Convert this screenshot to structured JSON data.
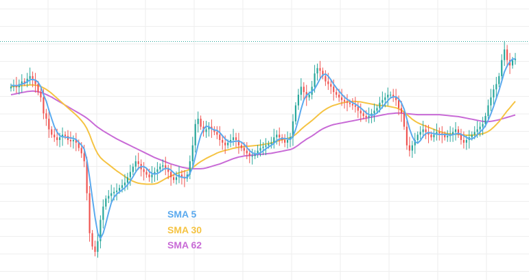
{
  "chart_data": {
    "type": "candlestick",
    "title": "",
    "xlabel": "",
    "ylabel": "",
    "grid": true,
    "legend_position": "bottom-left",
    "colors": {
      "up": "#26a69a",
      "down": "#ef5350",
      "sma5": "#5aa9ee",
      "sma30": "#f5c342",
      "sma62": "#c86ad6",
      "reference_line": "#26a69a",
      "grid": "#eeeeee"
    },
    "ylim": [
      0,
      100
    ],
    "reference_level": 87,
    "close": [
      70,
      70.5,
      69.8,
      71,
      72,
      71.5,
      73,
      74,
      72.5,
      71,
      68,
      66,
      60,
      58,
      54,
      52,
      51,
      50,
      51,
      52,
      51.5,
      50,
      49.5,
      50,
      49,
      47,
      45,
      42,
      30,
      15,
      10,
      8,
      12,
      20,
      25,
      28,
      29,
      30,
      30.5,
      31,
      32,
      33,
      34,
      36,
      38,
      40,
      42,
      41,
      39,
      38,
      37,
      36,
      37,
      38,
      39,
      40,
      40.5,
      39,
      38,
      36,
      35,
      36,
      37,
      36,
      35.5,
      37,
      42,
      48,
      56,
      58,
      55,
      53,
      54,
      55,
      54,
      53,
      52,
      50,
      49,
      48,
      49,
      50,
      51,
      50,
      48,
      47,
      46,
      45,
      44,
      44,
      45,
      46,
      47,
      47.5,
      48,
      48.5,
      49,
      51,
      52,
      51,
      50,
      49,
      50,
      51,
      57,
      63,
      67,
      70,
      68,
      66,
      67,
      70,
      75,
      77,
      76,
      74,
      72,
      71,
      70,
      68,
      67,
      66,
      65,
      64.5,
      64,
      63.5,
      63,
      62.5,
      61,
      60,
      59,
      58.5,
      59,
      60,
      61,
      62,
      64,
      65,
      66,
      67,
      67,
      66,
      65,
      62,
      60,
      55,
      48,
      46,
      48,
      50,
      52,
      53,
      54,
      53,
      52,
      51,
      52,
      53,
      52.5,
      52,
      51,
      51.5,
      52,
      53,
      54,
      52,
      50,
      49,
      50,
      51,
      52,
      53,
      54,
      55,
      56,
      59,
      63,
      66,
      69,
      71,
      74,
      80,
      84,
      80,
      78,
      80,
      80.5
    ],
    "sma5": [
      70.5,
      70.5,
      70.4,
      70.6,
      71.0,
      71.3,
      71.9,
      72.6,
      72.7,
      72.5,
      71.7,
      70.0,
      67.0,
      64.6,
      61.2,
      58.0,
      55.0,
      53.0,
      51.6,
      51.2,
      51.1,
      50.9,
      50.8,
      50.6,
      50.2,
      49.1,
      48.1,
      46.6,
      42.6,
      35.8,
      28.4,
      21.0,
      15.0,
      13.0,
      15.0,
      18.6,
      22.8,
      26.4,
      28.5,
      29.7,
      30.5,
      31.3,
      32.1,
      33.2,
      34.6,
      36.2,
      38.0,
      39.4,
      40.0,
      40.0,
      39.4,
      38.2,
      37.4,
      37.2,
      37.4,
      38.0,
      38.9,
      39.3,
      39.3,
      38.7,
      37.7,
      36.8,
      36.4,
      36.0,
      35.9,
      35.9,
      37.5,
      39.7,
      43.7,
      48.2,
      51.8,
      54.0,
      55.2,
      55.0,
      54.2,
      53.8,
      53.6,
      52.8,
      51.6,
      50.4,
      49.6,
      49.2,
      49.4,
      49.6,
      49.6,
      49.2,
      48.4,
      47.2,
      46.0,
      45.2,
      44.8,
      44.8,
      45.2,
      45.9,
      46.7,
      47.4,
      48.0,
      48.8,
      49.8,
      50.3,
      50.6,
      50.6,
      50.4,
      50.2,
      51.4,
      54.0,
      57.6,
      61.6,
      65.0,
      66.8,
      67.6,
      68.2,
      69.2,
      71.0,
      73.0,
      74.4,
      74.8,
      74.0,
      72.6,
      71.0,
      69.6,
      68.4,
      67.2,
      66.1,
      65.3,
      64.6,
      64.0,
      63.5,
      62.8,
      62.0,
      61.1,
      60.2,
      59.5,
      59.3,
      59.5,
      60.1,
      61.2,
      62.4,
      63.6,
      64.8,
      65.8,
      66.2,
      66.2,
      65.4,
      64.0,
      61.6,
      58.0,
      54.2,
      51.4,
      49.4,
      48.8,
      49.8,
      51.4,
      52.4,
      52.8,
      52.6,
      52.4,
      52.2,
      52.1,
      52.1,
      52.1,
      52.0,
      51.8,
      52.0,
      52.3,
      52.5,
      52.2,
      51.6,
      51.0,
      50.4,
      50.4,
      51.0,
      52.0,
      53.0,
      54.0,
      55.4,
      57.4,
      59.8,
      62.6,
      65.6,
      68.6,
      72.0,
      75.6,
      77.8,
      79.4,
      80.4,
      80.5
    ],
    "sma30": [
      70.0,
      70.1,
      70.2,
      70.3,
      70.4,
      70.5,
      70.6,
      70.7,
      70.7,
      70.6,
      70.4,
      70.1,
      69.6,
      69.0,
      68.3,
      67.5,
      66.6,
      65.7,
      64.8,
      63.9,
      63.0,
      62.1,
      61.2,
      60.3,
      59.4,
      58.4,
      57.3,
      56.0,
      54.3,
      52.0,
      49.3,
      46.8,
      44.8,
      43.4,
      42.4,
      41.6,
      40.8,
      40.0,
      39.2,
      38.4,
      37.7,
      37.0,
      36.3,
      35.6,
      35.0,
      34.5,
      34.1,
      33.8,
      33.6,
      33.5,
      33.4,
      33.4,
      33.4,
      33.5,
      33.8,
      34.3,
      34.9,
      35.5,
      36.0,
      36.5,
      36.9,
      37.3,
      37.7,
      38.0,
      38.3,
      38.6,
      39.0,
      39.6,
      40.4,
      41.2,
      41.9,
      42.5,
      43.1,
      43.6,
      44.1,
      44.6,
      45.1,
      45.5,
      45.8,
      46.1,
      46.3,
      46.6,
      46.9,
      47.1,
      47.3,
      47.4,
      47.5,
      47.6,
      47.7,
      47.8,
      47.9,
      48.0,
      48.1,
      48.3,
      48.5,
      48.7,
      48.9,
      49.2,
      49.5,
      49.8,
      50.1,
      50.3,
      50.6,
      50.9,
      51.4,
      52.1,
      53.0,
      54.0,
      54.9,
      55.7,
      56.5,
      57.3,
      58.2,
      59.1,
      60.0,
      60.8,
      61.5,
      62.1,
      62.6,
      63.0,
      63.3,
      63.6,
      63.9,
      64.1,
      64.3,
      64.4,
      64.5,
      64.5,
      64.4,
      64.3,
      64.1,
      63.9,
      63.7,
      63.5,
      63.3,
      63.1,
      63.0,
      62.9,
      62.8,
      62.7,
      62.5,
      62.3,
      62.1,
      61.7,
      61.2,
      60.5,
      59.6,
      58.7,
      57.8,
      57.1,
      56.5,
      56.0,
      55.6,
      55.2,
      54.8,
      54.4,
      54.0,
      53.6,
      53.2,
      52.9,
      52.6,
      52.4,
      52.3,
      52.2,
      52.2,
      52.1,
      52.0,
      51.9,
      51.8,
      51.8,
      51.8,
      51.9,
      52.0,
      52.2,
      52.4,
      52.7,
      53.2,
      53.9,
      54.8,
      55.8,
      56.9,
      58.2,
      59.6,
      60.9,
      62.1,
      63.3,
      64.5
    ],
    "sma62": [
      67.0,
      67.2,
      67.4,
      67.6,
      67.8,
      68.0,
      68.2,
      68.3,
      68.4,
      68.3,
      68.1,
      67.9,
      67.5,
      67.1,
      66.6,
      66.1,
      65.5,
      64.9,
      64.3,
      63.7,
      63.1,
      62.5,
      61.9,
      61.3,
      60.7,
      60.1,
      59.5,
      58.9,
      58.2,
      57.4,
      56.5,
      55.6,
      54.8,
      54.1,
      53.4,
      52.8,
      52.2,
      51.6,
      51.0,
      50.4,
      49.9,
      49.4,
      48.9,
      48.4,
      47.9,
      47.4,
      46.9,
      46.4,
      45.9,
      45.4,
      44.9,
      44.4,
      43.9,
      43.4,
      43.0,
      42.6,
      42.2,
      41.8,
      41.4,
      41.0,
      40.7,
      40.4,
      40.1,
      39.8,
      39.6,
      39.4,
      39.3,
      39.2,
      39.2,
      39.2,
      39.2,
      39.3,
      39.5,
      39.8,
      40.1,
      40.4,
      40.7,
      41.0,
      41.4,
      41.8,
      42.2,
      42.6,
      43.0,
      43.3,
      43.6,
      43.8,
      44.0,
      44.1,
      44.2,
      44.3,
      44.4,
      44.5,
      44.6,
      44.7,
      44.8,
      44.9,
      45.0,
      45.2,
      45.4,
      45.6,
      45.8,
      46.0,
      46.2,
      46.4,
      46.8,
      47.4,
      48.1,
      48.9,
      49.6,
      50.3,
      50.9,
      51.5,
      52.2,
      52.9,
      53.6,
      54.2,
      54.7,
      55.1,
      55.5,
      55.8,
      56.0,
      56.2,
      56.4,
      56.6,
      56.8,
      57.0,
      57.2,
      57.4,
      57.6,
      57.8,
      58.0,
      58.2,
      58.4,
      58.6,
      58.8,
      59.0,
      59.2,
      59.4,
      59.6,
      59.8,
      59.9,
      60.0,
      60.1,
      60.1,
      60.1,
      60.0,
      59.9,
      59.8,
      59.7,
      59.6,
      59.5,
      59.5,
      59.5,
      59.5,
      59.5,
      59.5,
      59.5,
      59.5,
      59.5,
      59.4,
      59.3,
      59.2,
      59.1,
      59.0,
      58.9,
      58.8,
      58.6,
      58.4,
      58.2,
      58.0,
      57.8,
      57.6,
      57.4,
      57.2,
      57.0,
      56.9,
      56.9,
      57.0,
      57.2,
      57.4,
      57.6,
      57.9,
      58.2,
      58.5,
      58.8,
      59.1,
      59.4
    ],
    "legend": [
      {
        "label": "SMA 5",
        "color": "#5aa9ee"
      },
      {
        "label": "SMA 30",
        "color": "#f5c342"
      },
      {
        "label": "SMA 62",
        "color": "#c86ad6"
      }
    ]
  }
}
